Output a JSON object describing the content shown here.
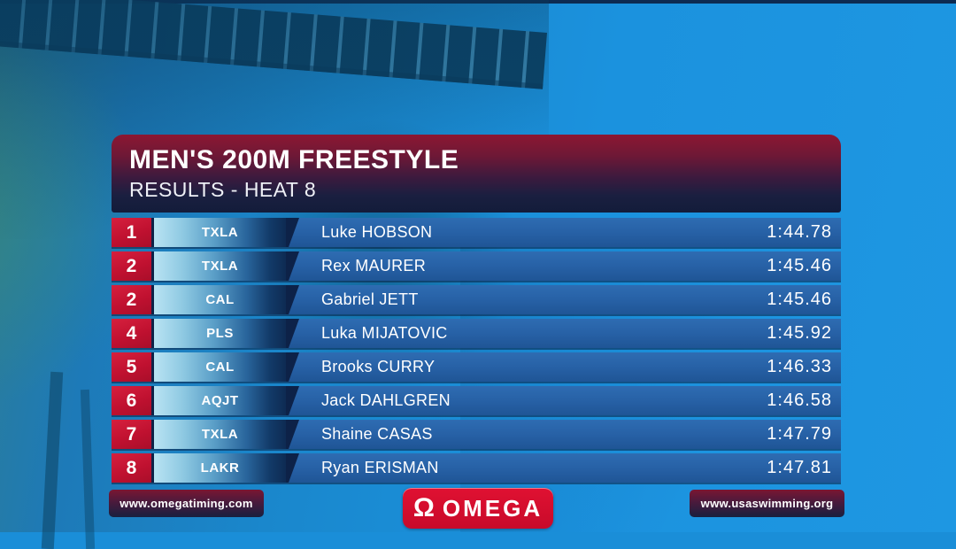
{
  "header": {
    "title": "MEN'S 200M FREESTYLE",
    "subtitle": "RESULTS - HEAT 8"
  },
  "results": {
    "rows": [
      {
        "rank": "1",
        "team": "TXLA",
        "name": "Luke HOBSON",
        "time": "1:44.78"
      },
      {
        "rank": "2",
        "team": "TXLA",
        "name": "Rex MAURER",
        "time": "1:45.46"
      },
      {
        "rank": "2",
        "team": "CAL",
        "name": "Gabriel JETT",
        "time": "1:45.46"
      },
      {
        "rank": "4",
        "team": "PLS",
        "name": "Luka MIJATOVIC",
        "time": "1:45.92"
      },
      {
        "rank": "5",
        "team": "CAL",
        "name": "Brooks CURRY",
        "time": "1:46.33"
      },
      {
        "rank": "6",
        "team": "AQJT",
        "name": "Jack DAHLGREN",
        "time": "1:46.58"
      },
      {
        "rank": "7",
        "team": "TXLA",
        "name": "Shaine CASAS",
        "time": "1:47.79"
      },
      {
        "rank": "8",
        "team": "LAKR",
        "name": "Ryan ERISMAN",
        "time": "1:47.81"
      }
    ]
  },
  "footer": {
    "left_url": "www.omegatiming.com",
    "right_url": "www.usaswimming.org",
    "omega_logo": {
      "symbol": "Ω",
      "text": "OMEGA"
    }
  },
  "colors": {
    "rank_red": "#c01130",
    "header_top_maroon": "#8c1732",
    "header_bottom_navy": "#131c3a",
    "row_blue": "#2761a6",
    "team_cell_light": "#b9e3f3",
    "pool_blue": "#1a8ed8",
    "omega_red": "#c80a2a"
  }
}
